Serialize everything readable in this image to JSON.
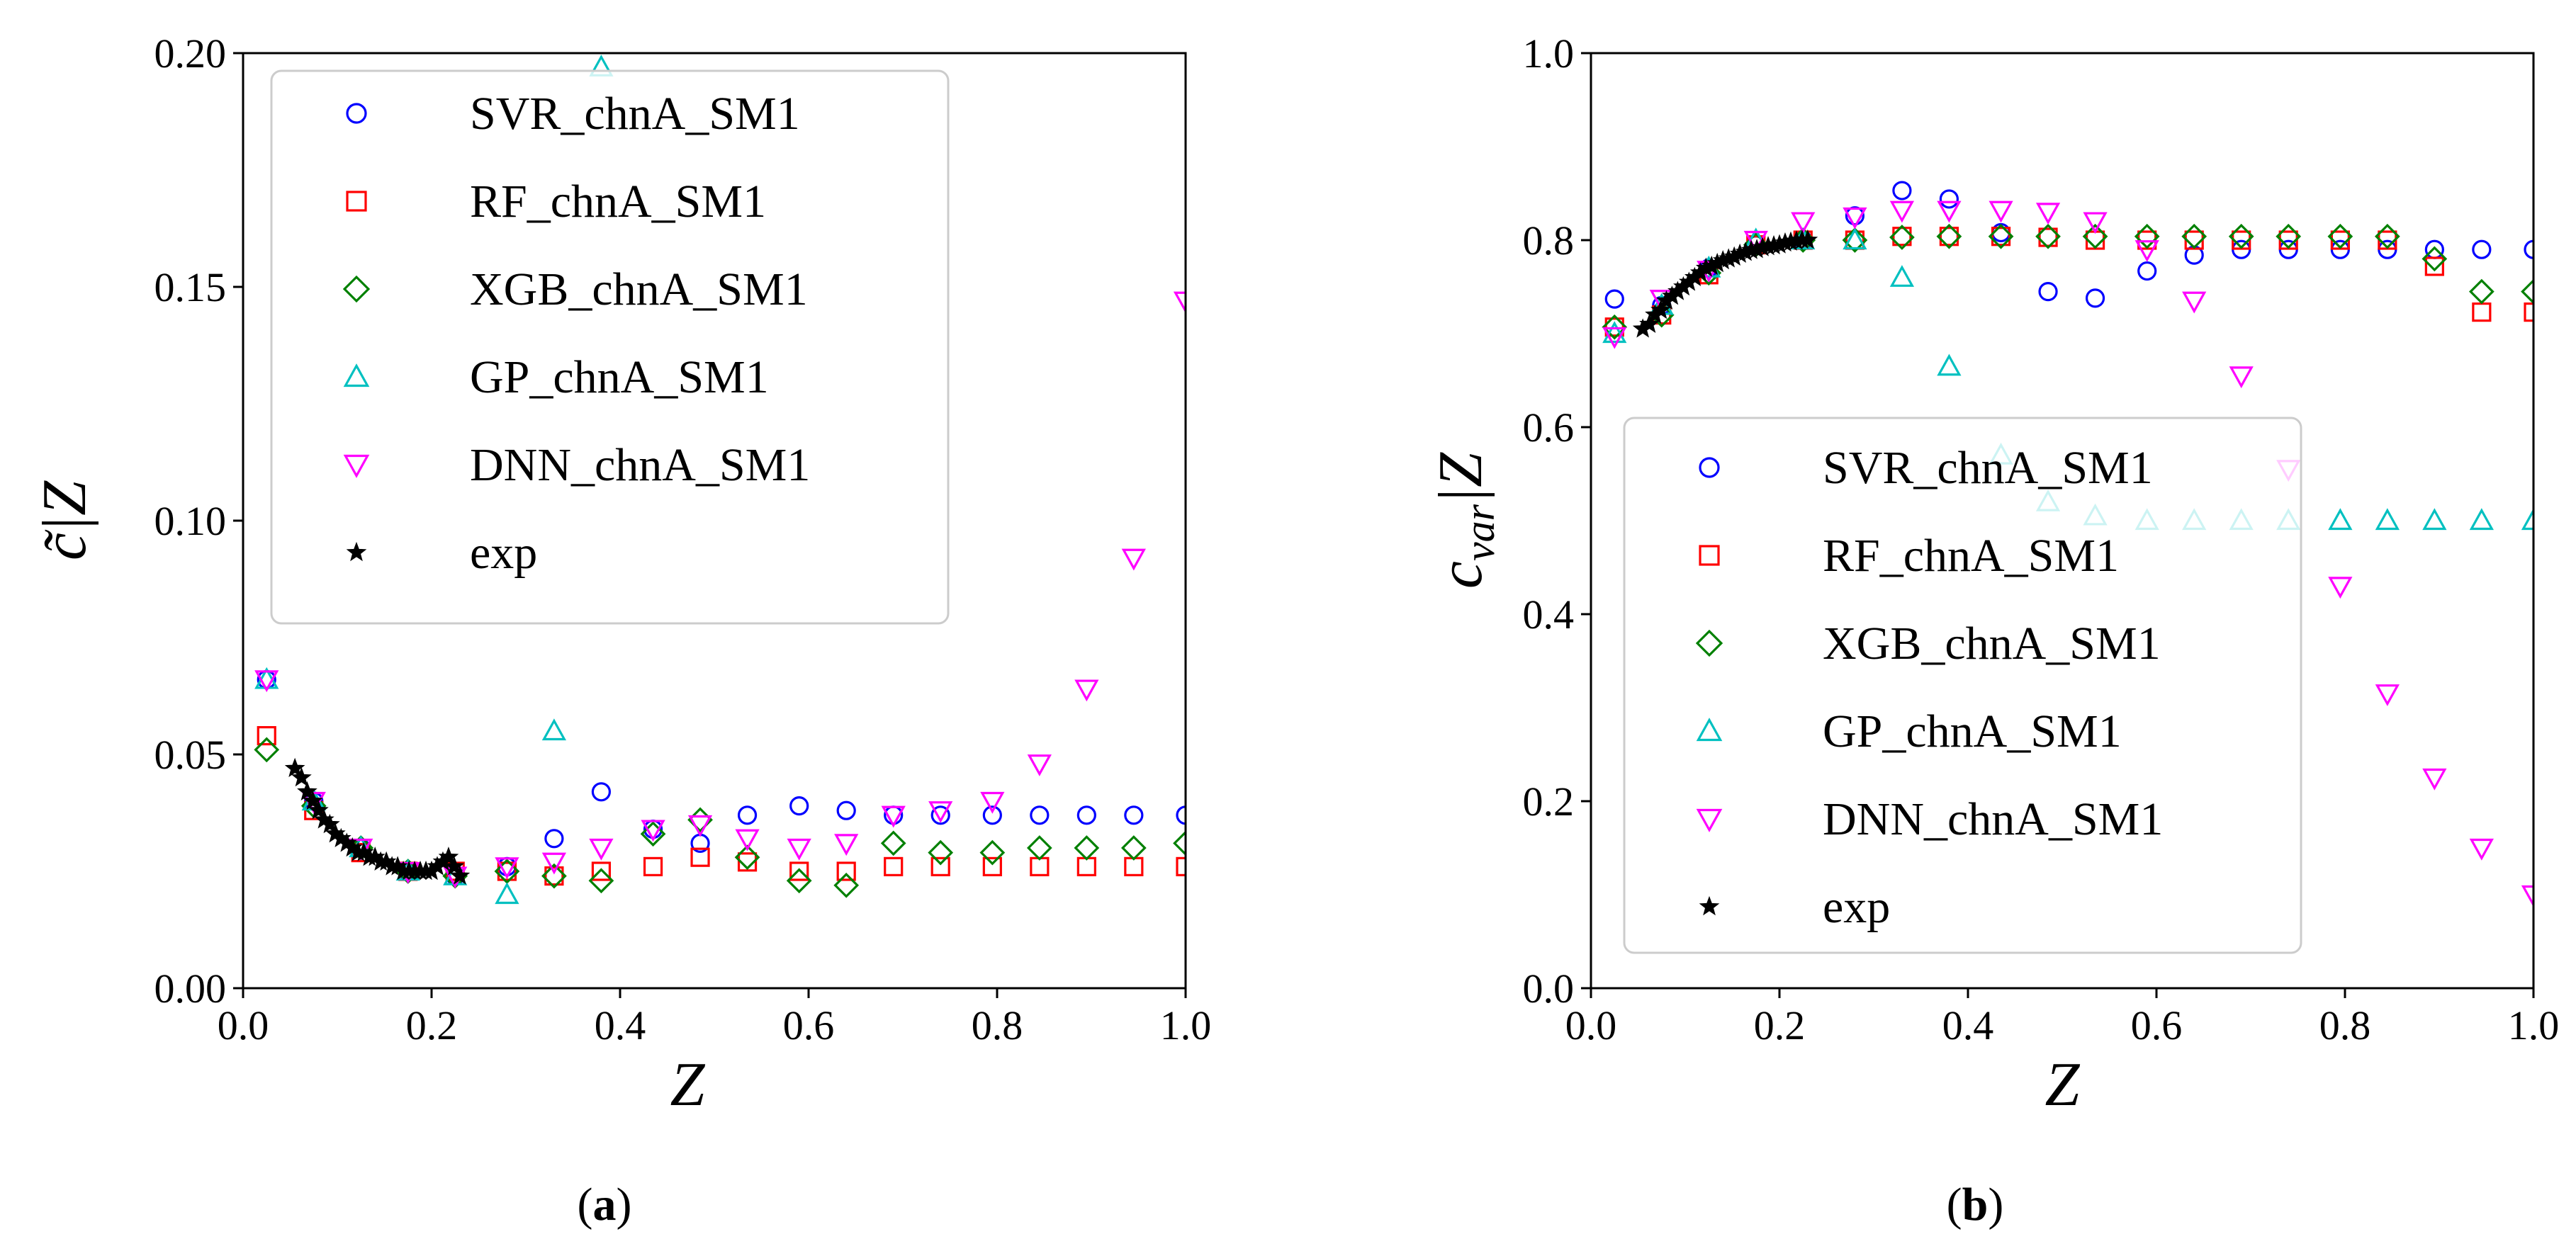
{
  "chart_data": [
    {
      "type": "scatter",
      "panel_label": "a",
      "xlabel": "Z",
      "ylabel": "c̃|Z",
      "xlim": [
        0.0,
        1.0
      ],
      "ylim": [
        0.0,
        0.2
      ],
      "xticks": [
        "0.0",
        "0.2",
        "0.4",
        "0.6",
        "0.8",
        "1.0"
      ],
      "yticks": [
        "0.00",
        "0.05",
        "0.10",
        "0.15",
        "0.20"
      ],
      "grid": false,
      "legend_position": "top-left",
      "series": [
        {
          "name": "SVR_chnA_SM1",
          "marker": "circle",
          "color": "#0000ff",
          "x": [
            0.025,
            0.075,
            0.125,
            0.175,
            0.225,
            0.28,
            0.33,
            0.38,
            0.435,
            0.485,
            0.535,
            0.59,
            0.64,
            0.69,
            0.74,
            0.795,
            0.845,
            0.895,
            0.945,
            1.0
          ],
          "y": [
            0.066,
            0.04,
            0.03,
            0.025,
            0.024,
            0.026,
            0.032,
            0.042,
            0.034,
            0.031,
            0.037,
            0.039,
            0.038,
            0.037,
            0.037,
            0.037,
            0.037,
            0.037,
            0.037,
            0.037
          ]
        },
        {
          "name": "RF_chnA_SM1",
          "marker": "square",
          "color": "#ff0000",
          "x": [
            0.025,
            0.075,
            0.125,
            0.175,
            0.225,
            0.28,
            0.33,
            0.38,
            0.435,
            0.485,
            0.535,
            0.59,
            0.64,
            0.69,
            0.74,
            0.795,
            0.845,
            0.895,
            0.945,
            1.0
          ],
          "y": [
            0.054,
            0.038,
            0.029,
            0.025,
            0.025,
            0.025,
            0.024,
            0.025,
            0.026,
            0.028,
            0.027,
            0.025,
            0.025,
            0.026,
            0.026,
            0.026,
            0.026,
            0.026,
            0.026,
            0.026
          ]
        },
        {
          "name": "XGB_chnA_SM1",
          "marker": "diamond",
          "color": "#008000",
          "x": [
            0.025,
            0.075,
            0.125,
            0.175,
            0.225,
            0.28,
            0.33,
            0.38,
            0.435,
            0.485,
            0.535,
            0.59,
            0.64,
            0.69,
            0.74,
            0.795,
            0.845,
            0.895,
            0.945,
            1.0
          ],
          "y": [
            0.051,
            0.039,
            0.03,
            0.025,
            0.024,
            0.025,
            0.024,
            0.023,
            0.033,
            0.036,
            0.028,
            0.023,
            0.022,
            0.031,
            0.029,
            0.029,
            0.03,
            0.03,
            0.03,
            0.031
          ]
        },
        {
          "name": "GP_chnA_SM1",
          "marker": "triangle-up",
          "color": "#00c0c0",
          "x": [
            0.025,
            0.075,
            0.125,
            0.175,
            0.225,
            0.28,
            0.33,
            0.38
          ],
          "y": [
            0.066,
            0.04,
            0.03,
            0.025,
            0.024,
            0.02,
            0.055,
            0.197
          ]
        },
        {
          "name": "DNN_chnA_SM1",
          "marker": "triangle-down",
          "color": "#ff00ff",
          "x": [
            0.025,
            0.075,
            0.125,
            0.175,
            0.225,
            0.28,
            0.33,
            0.38,
            0.435,
            0.485,
            0.535,
            0.59,
            0.64,
            0.69,
            0.74,
            0.795,
            0.845,
            0.895,
            0.945,
            1.0
          ],
          "y": [
            0.066,
            0.04,
            0.03,
            0.025,
            0.024,
            0.026,
            0.027,
            0.03,
            0.034,
            0.035,
            0.032,
            0.03,
            0.031,
            0.037,
            0.038,
            0.04,
            0.048,
            0.064,
            0.092,
            0.147
          ]
        },
        {
          "name": "exp",
          "marker": "star",
          "color": "#000000",
          "x": [
            0.055,
            0.062,
            0.068,
            0.074,
            0.08,
            0.086,
            0.092,
            0.098,
            0.104,
            0.11,
            0.116,
            0.122,
            0.128,
            0.134,
            0.14,
            0.146,
            0.152,
            0.158,
            0.164,
            0.17,
            0.176,
            0.182,
            0.188,
            0.194,
            0.2,
            0.206,
            0.212,
            0.218,
            0.224,
            0.23
          ],
          "y": [
            0.047,
            0.045,
            0.042,
            0.04,
            0.038,
            0.036,
            0.035,
            0.033,
            0.032,
            0.031,
            0.03,
            0.029,
            0.029,
            0.028,
            0.028,
            0.027,
            0.027,
            0.026,
            0.026,
            0.025,
            0.025,
            0.025,
            0.025,
            0.025,
            0.025,
            0.026,
            0.027,
            0.028,
            0.026,
            0.024
          ]
        }
      ]
    },
    {
      "type": "scatter",
      "panel_label": "b",
      "xlabel": "Z",
      "ylabel_main": "c",
      "ylabel_sub": "var",
      "ylabel_rest": "|Z",
      "xlim": [
        0.0,
        1.0
      ],
      "ylim": [
        0.0,
        1.0
      ],
      "xticks": [
        "0.0",
        "0.2",
        "0.4",
        "0.6",
        "0.8",
        "1.0"
      ],
      "yticks": [
        "0.0",
        "0.2",
        "0.4",
        "0.6",
        "0.8",
        "1.0"
      ],
      "grid": false,
      "legend_position": "lower-left",
      "series": [
        {
          "name": "SVR_chnA_SM1",
          "marker": "circle",
          "color": "#0000ff",
          "x": [
            0.025,
            0.075,
            0.125,
            0.175,
            0.225,
            0.28,
            0.33,
            0.38,
            0.435,
            0.485,
            0.535,
            0.59,
            0.64,
            0.69,
            0.74,
            0.795,
            0.845,
            0.895,
            0.945,
            1.0
          ],
          "y": [
            0.737,
            0.73,
            0.77,
            0.795,
            0.8,
            0.826,
            0.853,
            0.844,
            0.808,
            0.745,
            0.738,
            0.767,
            0.784,
            0.79,
            0.79,
            0.79,
            0.79,
            0.79,
            0.79,
            0.79
          ]
        },
        {
          "name": "RF_chnA_SM1",
          "marker": "square",
          "color": "#ff0000",
          "x": [
            0.025,
            0.075,
            0.125,
            0.175,
            0.225,
            0.28,
            0.33,
            0.38,
            0.435,
            0.485,
            0.535,
            0.59,
            0.64,
            0.69,
            0.74,
            0.795,
            0.845,
            0.895,
            0.945,
            1.0
          ],
          "y": [
            0.707,
            0.72,
            0.763,
            0.795,
            0.8,
            0.8,
            0.804,
            0.804,
            0.804,
            0.803,
            0.8,
            0.8,
            0.8,
            0.8,
            0.8,
            0.8,
            0.8,
            0.772,
            0.723,
            0.723
          ]
        },
        {
          "name": "XGB_chnA_SM1",
          "marker": "diamond",
          "color": "#008000",
          "x": [
            0.025,
            0.075,
            0.125,
            0.175,
            0.225,
            0.28,
            0.33,
            0.38,
            0.435,
            0.485,
            0.535,
            0.59,
            0.64,
            0.69,
            0.74,
            0.795,
            0.845,
            0.895,
            0.945,
            1.0
          ],
          "y": [
            0.707,
            0.72,
            0.765,
            0.795,
            0.8,
            0.8,
            0.803,
            0.804,
            0.804,
            0.804,
            0.804,
            0.804,
            0.804,
            0.804,
            0.804,
            0.804,
            0.804,
            0.78,
            0.745,
            0.745
          ]
        },
        {
          "name": "GP_chnA_SM1",
          "marker": "triangle-up",
          "color": "#00c0c0",
          "x": [
            0.025,
            0.075,
            0.125,
            0.175,
            0.225,
            0.28,
            0.33,
            0.38,
            0.435,
            0.485,
            0.535,
            0.59,
            0.64,
            0.69,
            0.74,
            0.795,
            0.845,
            0.895,
            0.945,
            1.0
          ],
          "y": [
            0.7,
            0.73,
            0.77,
            0.8,
            0.8,
            0.8,
            0.76,
            0.665,
            0.57,
            0.52,
            0.505,
            0.5,
            0.5,
            0.5,
            0.5,
            0.5,
            0.5,
            0.5,
            0.5,
            0.5
          ]
        },
        {
          "name": "DNN_chnA_SM1",
          "marker": "triangle-down",
          "color": "#ff00ff",
          "x": [
            0.025,
            0.075,
            0.125,
            0.175,
            0.225,
            0.28,
            0.33,
            0.38,
            0.435,
            0.485,
            0.535,
            0.59,
            0.64,
            0.69,
            0.74,
            0.795,
            0.845,
            0.895,
            0.945,
            1.0
          ],
          "y": [
            0.697,
            0.737,
            0.768,
            0.8,
            0.82,
            0.825,
            0.832,
            0.832,
            0.832,
            0.83,
            0.82,
            0.79,
            0.735,
            0.655,
            0.555,
            0.43,
            0.315,
            0.225,
            0.15,
            0.1
          ]
        },
        {
          "name": "exp",
          "marker": "star",
          "color": "#000000",
          "x": [
            0.055,
            0.062,
            0.068,
            0.074,
            0.08,
            0.086,
            0.092,
            0.098,
            0.104,
            0.11,
            0.116,
            0.122,
            0.128,
            0.134,
            0.14,
            0.146,
            0.152,
            0.158,
            0.164,
            0.17,
            0.176,
            0.182,
            0.188,
            0.194,
            0.2,
            0.206,
            0.212,
            0.218,
            0.224,
            0.23
          ],
          "y": [
            0.705,
            0.71,
            0.72,
            0.725,
            0.735,
            0.74,
            0.745,
            0.75,
            0.755,
            0.76,
            0.765,
            0.77,
            0.772,
            0.775,
            0.778,
            0.78,
            0.782,
            0.785,
            0.787,
            0.789,
            0.79,
            0.792,
            0.793,
            0.794,
            0.795,
            0.797,
            0.798,
            0.799,
            0.8,
            0.8
          ]
        }
      ]
    }
  ]
}
